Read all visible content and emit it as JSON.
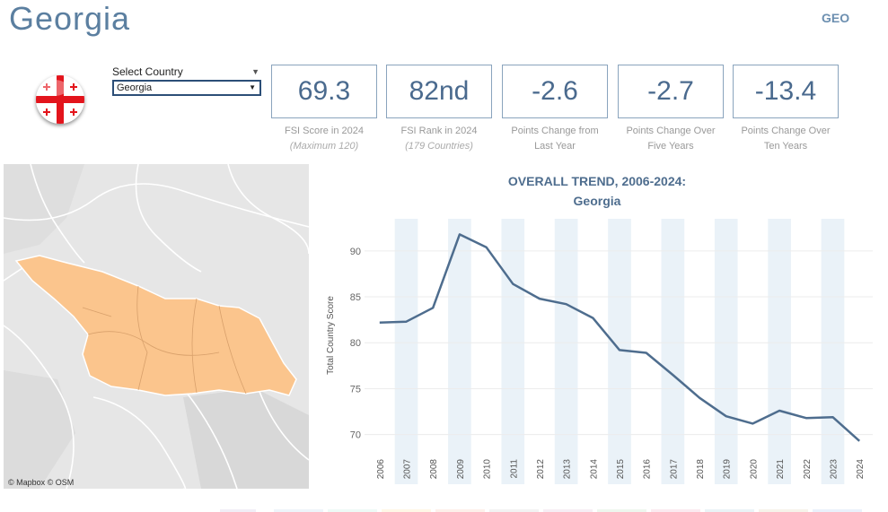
{
  "header": {
    "country_title": "Georgia",
    "country_code": "GEO"
  },
  "selector": {
    "label": "Select Country",
    "value": "Georgia"
  },
  "kpis": [
    {
      "value": "69.3",
      "label": "FSI Score in 2024",
      "sub": "(Maximum 120)"
    },
    {
      "value": "82nd",
      "label": "FSI Rank in 2024",
      "sub": "(179 Countries)"
    },
    {
      "value": "-2.6",
      "label": "Points Change from",
      "sub": "Last Year"
    },
    {
      "value": "-2.7",
      "label": "Points Change Over",
      "sub": "Five Years"
    },
    {
      "value": "-13.4",
      "label": "Points Change Over",
      "sub": "Ten Years"
    }
  ],
  "map": {
    "attribution": "© Mapbox  © OSM",
    "highlight_color": "#fbc58d"
  },
  "chart_data": {
    "type": "line",
    "title": "OVERALL TREND, 2006-2024:",
    "subtitle": "Georgia",
    "ylabel": "Total Country Score",
    "xlabel": "",
    "ylim": [
      68.5,
      93.5
    ],
    "yticks": [
      70,
      75,
      80,
      85,
      90
    ],
    "x": [
      "2006",
      "2007",
      "2008",
      "2009",
      "2010",
      "2011",
      "2012",
      "2013",
      "2014",
      "2015",
      "2016",
      "2017",
      "2018",
      "2019",
      "2020",
      "2021",
      "2022",
      "2023",
      "2024"
    ],
    "series": [
      {
        "values": [
          82.2,
          82.3,
          83.8,
          91.8,
          90.4,
          86.4,
          84.8,
          84.2,
          82.7,
          79.2,
          78.9,
          76.5,
          74.0,
          72.0,
          71.2,
          72.6,
          71.8,
          71.9,
          69.3
        ]
      }
    ],
    "line_color": "#4e6d8e",
    "band_color": "#eaf2f8",
    "grid": true
  }
}
